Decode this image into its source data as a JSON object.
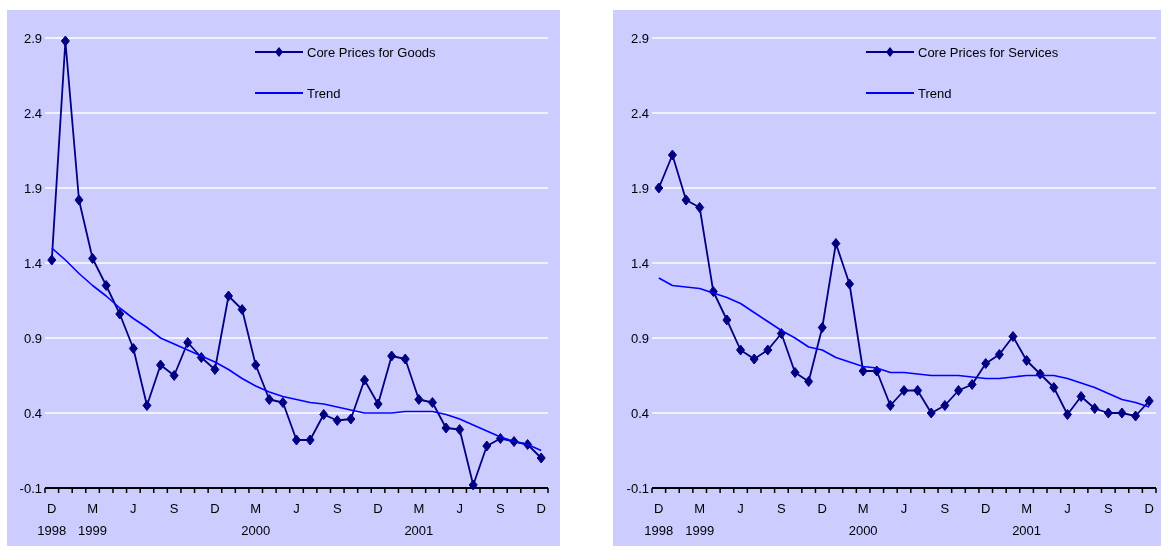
{
  "chart_data": [
    {
      "type": "line",
      "categories": [
        "D 1998",
        null,
        null,
        "M 1999",
        null,
        null,
        "J",
        null,
        null,
        "S",
        null,
        null,
        "D",
        null,
        null,
        "M 2000",
        null,
        null,
        "J",
        null,
        null,
        "S",
        null,
        null,
        "D",
        null,
        null,
        "M 2001",
        null,
        null,
        "J",
        null,
        null,
        "S",
        null,
        null,
        "D"
      ],
      "ylim": [
        -0.1,
        2.9
      ],
      "yticks": [
        -0.1,
        0.4,
        0.9,
        1.4,
        1.9,
        2.4,
        2.9
      ],
      "grid": "y",
      "legend": "top right",
      "marker": "diamond",
      "series": [
        {
          "name": "Core Prices for Goods",
          "color": "#000080",
          "values": [
            1.42,
            2.88,
            1.82,
            1.43,
            1.25,
            1.06,
            0.83,
            0.45,
            0.72,
            0.65,
            0.87,
            0.77,
            0.69,
            1.18,
            1.09,
            0.72,
            0.49,
            0.47,
            0.22,
            0.22,
            0.39,
            0.35,
            0.36,
            0.62,
            0.46,
            0.78,
            0.76,
            0.49,
            0.47,
            0.3,
            0.29,
            -0.08,
            0.18,
            0.23,
            0.21,
            0.19,
            0.1
          ]
        },
        {
          "name": "Trend",
          "color": "#0000ff",
          "marker": "none",
          "values": [
            1.5,
            1.42,
            1.33,
            1.25,
            1.18,
            1.1,
            1.03,
            0.97,
            0.9,
            0.86,
            0.82,
            0.78,
            0.74,
            0.69,
            0.63,
            0.58,
            0.54,
            0.51,
            0.49,
            0.47,
            0.46,
            0.44,
            0.42,
            0.4,
            0.4,
            0.4,
            0.41,
            0.41,
            0.41,
            0.39,
            0.36,
            0.32,
            0.28,
            0.24,
            0.21,
            0.19,
            0.15
          ]
        }
      ]
    },
    {
      "type": "line",
      "categories": [
        "D 1998",
        null,
        null,
        "M 1999",
        null,
        null,
        "J",
        null,
        null,
        "S",
        null,
        null,
        "D",
        null,
        null,
        "M 2000",
        null,
        null,
        "J",
        null,
        null,
        "S",
        null,
        null,
        "D",
        null,
        null,
        "M 2001",
        null,
        null,
        "J",
        null,
        null,
        "S",
        null,
        null,
        "D"
      ],
      "ylim": [
        -0.1,
        2.9
      ],
      "yticks": [
        -0.1,
        0.4,
        0.9,
        1.4,
        1.9,
        2.4,
        2.9
      ],
      "grid": "y",
      "legend": "top right",
      "marker": "diamond",
      "series": [
        {
          "name": "Core Prices for Services",
          "color": "#000080",
          "values": [
            1.9,
            2.12,
            1.82,
            1.77,
            1.21,
            1.02,
            0.82,
            0.76,
            0.82,
            0.93,
            0.67,
            0.61,
            0.97,
            1.53,
            1.26,
            0.68,
            0.68,
            0.45,
            0.55,
            0.55,
            0.4,
            0.45,
            0.55,
            0.59,
            0.73,
            0.79,
            0.91,
            0.75,
            0.66,
            0.57,
            0.39,
            0.51,
            0.43,
            0.4,
            0.4,
            0.38,
            0.48
          ]
        },
        {
          "name": "Trend",
          "color": "#0000ff",
          "marker": "none",
          "values": [
            1.3,
            1.25,
            1.24,
            1.23,
            1.2,
            1.17,
            1.13,
            1.07,
            1.01,
            0.95,
            0.9,
            0.84,
            0.82,
            0.77,
            0.74,
            0.71,
            0.7,
            0.67,
            0.67,
            0.66,
            0.65,
            0.65,
            0.65,
            0.64,
            0.63,
            0.63,
            0.64,
            0.65,
            0.65,
            0.65,
            0.63,
            0.6,
            0.57,
            0.53,
            0.49,
            0.47,
            0.44
          ]
        }
      ]
    }
  ]
}
